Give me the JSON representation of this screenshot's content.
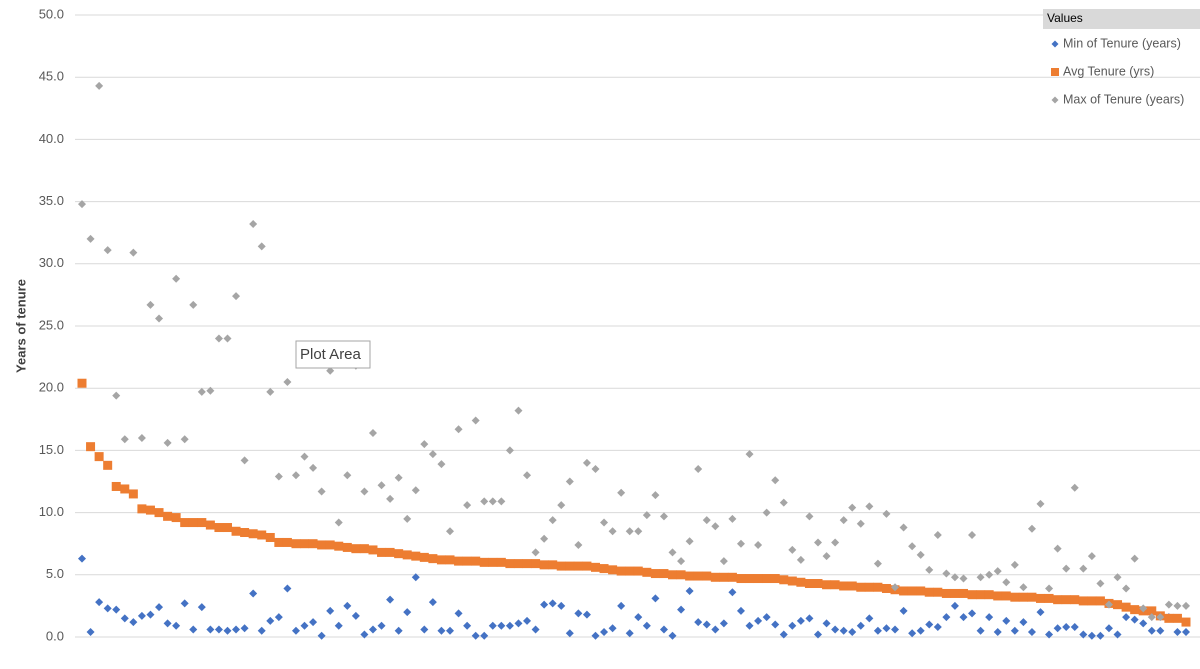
{
  "chart_data": {
    "type": "scatter",
    "y_label": "Years of tenure",
    "legend_title": "Values",
    "legend": "top-right",
    "tooltip": "Plot Area",
    "grid": true,
    "ylim": [
      0,
      50
    ],
    "yticks": [
      {
        "value": 0,
        "label": "0.0"
      },
      {
        "value": 5,
        "label": "5.0"
      },
      {
        "value": 10,
        "label": "10.0"
      },
      {
        "value": 15,
        "label": "15.0"
      },
      {
        "value": 20,
        "label": "20.0"
      },
      {
        "value": 25,
        "label": "25.0"
      },
      {
        "value": 30,
        "label": "30.0"
      },
      {
        "value": 35,
        "label": "35.0"
      },
      {
        "value": 40,
        "label": "40.0"
      },
      {
        "value": 45,
        "label": "45.0"
      },
      {
        "value": 50,
        "label": "50.0"
      }
    ],
    "categories": [
      null,
      null,
      null,
      null,
      null,
      null,
      null,
      null,
      null,
      null,
      null,
      null,
      null,
      null,
      null,
      null,
      null,
      null,
      null,
      null,
      null,
      null,
      null,
      null,
      null,
      null,
      null,
      null,
      null,
      null,
      null,
      null,
      null,
      null,
      null,
      null,
      null,
      null,
      null,
      null,
      null,
      null,
      null,
      null,
      null,
      null,
      null,
      null,
      null,
      null,
      null,
      null,
      null,
      null,
      null,
      null,
      null,
      null,
      null,
      null,
      null,
      null,
      null,
      null,
      null,
      null,
      null,
      null,
      null,
      null,
      null,
      null,
      null,
      null,
      null,
      null,
      null,
      null,
      null,
      null,
      null,
      null,
      null,
      null,
      null,
      null,
      null,
      null,
      null,
      null,
      null,
      null,
      null,
      null,
      null,
      null,
      null,
      null,
      null,
      null,
      null,
      null,
      null,
      null,
      null,
      null,
      null,
      null,
      null,
      null,
      null,
      null,
      null,
      null,
      null,
      null,
      null,
      null,
      null,
      null,
      null,
      null,
      null,
      null,
      null,
      null,
      null,
      null,
      null,
      null
    ],
    "series": [
      {
        "name": "Min of Tenure (years)",
        "color": "#4472c4",
        "marker": "diamond",
        "values": [
          6.3,
          0.4,
          2.8,
          2.3,
          2.2,
          1.5,
          1.2,
          1.7,
          1.8,
          2.4,
          1.1,
          0.9,
          2.7,
          0.6,
          2.4,
          0.6,
          0.6,
          0.5,
          0.6,
          0.7,
          3.5,
          0.5,
          1.3,
          1.6,
          3.9,
          0.5,
          0.9,
          1.2,
          0.1,
          2.1,
          0.9,
          2.5,
          1.7,
          0.2,
          0.6,
          0.9,
          3.0,
          0.5,
          2.0,
          4.8,
          0.6,
          2.8,
          0.5,
          0.5,
          1.9,
          0.9,
          0.1,
          0.1,
          0.9,
          0.9,
          0.9,
          1.1,
          1.3,
          0.6,
          2.6,
          2.7,
          2.5,
          0.3,
          1.9,
          1.8,
          0.1,
          0.4,
          0.7,
          2.5,
          0.3,
          1.6,
          0.9,
          3.1,
          0.6,
          0.1,
          2.2,
          3.7,
          1.2,
          1.0,
          0.6,
          1.1,
          3.6,
          2.1,
          0.9,
          1.3,
          1.6,
          1.0,
          0.2,
          0.9,
          1.3,
          1.5,
          0.2,
          1.1,
          0.6,
          0.5,
          0.4,
          0.9,
          1.5,
          0.5,
          0.7,
          0.6,
          2.1,
          0.3,
          0.5,
          1.0,
          0.8,
          1.6,
          2.5,
          1.6,
          1.9,
          0.5,
          1.6,
          0.4,
          1.3,
          0.5,
          1.2,
          0.4,
          2.0,
          0.2,
          0.7,
          0.8,
          0.8,
          0.2,
          0.1,
          0.1,
          0.7,
          0.2,
          1.6,
          1.4,
          1.1,
          0.5,
          0.5,
          1.6,
          0.4,
          0.4
        ]
      },
      {
        "name": "Avg Tenure (yrs)",
        "color": "#ed7d31",
        "marker": "square",
        "values": [
          20.4,
          15.3,
          14.5,
          13.8,
          12.1,
          11.9,
          11.5,
          10.3,
          10.2,
          10.0,
          9.7,
          9.6,
          9.2,
          9.2,
          9.2,
          9.0,
          8.8,
          8.8,
          8.5,
          8.4,
          8.3,
          8.2,
          8.0,
          7.6,
          7.6,
          7.5,
          7.5,
          7.5,
          7.4,
          7.4,
          7.3,
          7.2,
          7.1,
          7.1,
          7.0,
          6.8,
          6.8,
          6.7,
          6.6,
          6.5,
          6.4,
          6.3,
          6.2,
          6.2,
          6.1,
          6.1,
          6.1,
          6.0,
          6.0,
          6.0,
          5.9,
          5.9,
          5.9,
          5.9,
          5.8,
          5.8,
          5.7,
          5.7,
          5.7,
          5.7,
          5.6,
          5.5,
          5.4,
          5.3,
          5.3,
          5.3,
          5.2,
          5.1,
          5.1,
          5.0,
          5.0,
          4.9,
          4.9,
          4.9,
          4.8,
          4.8,
          4.8,
          4.7,
          4.7,
          4.7,
          4.7,
          4.7,
          4.6,
          4.5,
          4.4,
          4.3,
          4.3,
          4.2,
          4.2,
          4.1,
          4.1,
          4.0,
          4.0,
          4.0,
          3.9,
          3.8,
          3.7,
          3.7,
          3.7,
          3.6,
          3.6,
          3.5,
          3.5,
          3.5,
          3.4,
          3.4,
          3.4,
          3.3,
          3.3,
          3.2,
          3.2,
          3.2,
          3.1,
          3.1,
          3.0,
          3.0,
          3.0,
          2.9,
          2.9,
          2.9,
          2.7,
          2.6,
          2.4,
          2.2,
          2.1,
          2.1,
          1.7,
          1.5,
          1.5,
          1.2
        ]
      },
      {
        "name": "Max of Tenure (years)",
        "color": "#a5a5a5",
        "marker": "diamond",
        "values": [
          34.8,
          32.0,
          44.3,
          31.1,
          19.4,
          15.9,
          30.9,
          16.0,
          26.7,
          25.6,
          15.6,
          28.8,
          15.9,
          26.7,
          19.7,
          19.8,
          24.0,
          24.0,
          27.4,
          14.2,
          33.2,
          31.4,
          19.7,
          12.9,
          20.5,
          13.0,
          14.5,
          13.6,
          11.7,
          21.4,
          9.2,
          13.0,
          21.8,
          11.7,
          16.4,
          12.2,
          11.1,
          12.8,
          9.5,
          11.8,
          15.5,
          14.7,
          13.9,
          8.5,
          16.7,
          10.6,
          17.4,
          10.9,
          10.9,
          10.9,
          15.0,
          18.2,
          13.0,
          6.8,
          7.9,
          9.4,
          10.6,
          12.5,
          7.4,
          14.0,
          13.5,
          9.2,
          8.5,
          11.6,
          8.5,
          8.5,
          9.8,
          11.4,
          9.7,
          6.8,
          6.1,
          7.7,
          13.5,
          9.4,
          8.9,
          6.1,
          9.5,
          7.5,
          14.7,
          7.4,
          10.0,
          12.6,
          10.8,
          7.0,
          6.2,
          9.7,
          7.6,
          6.5,
          7.6,
          9.4,
          10.4,
          9.1,
          10.5,
          5.9,
          9.9,
          4.0,
          8.8,
          7.3,
          6.6,
          5.4,
          8.2,
          5.1,
          4.8,
          4.7,
          8.2,
          4.8,
          5.0,
          5.3,
          4.4,
          5.8,
          4.0,
          8.7,
          10.7,
          3.9,
          7.1,
          5.5,
          12.0,
          5.5,
          6.5,
          4.3,
          2.6,
          4.8,
          3.9,
          6.3,
          2.3,
          1.6,
          1.6,
          2.6,
          2.5,
          2.5
        ]
      }
    ]
  }
}
